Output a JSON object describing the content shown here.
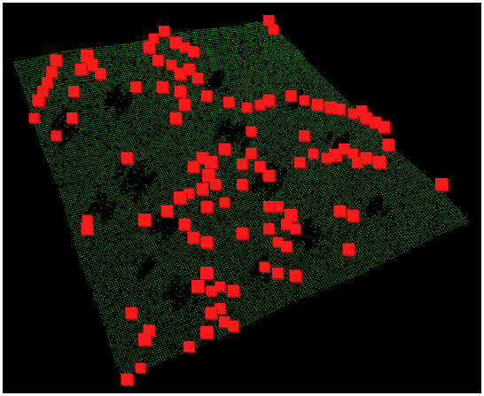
{
  "scene": {
    "background_color": "#000000",
    "frame_color": "#ffffff",
    "surface_point_color": "#2ec82e",
    "surface_point_color_dark": "#158c15",
    "marker_color": "#ff1a1a",
    "marker_color_dark": "#c80000",
    "description_icon": "point-cloud-terrain"
  }
}
